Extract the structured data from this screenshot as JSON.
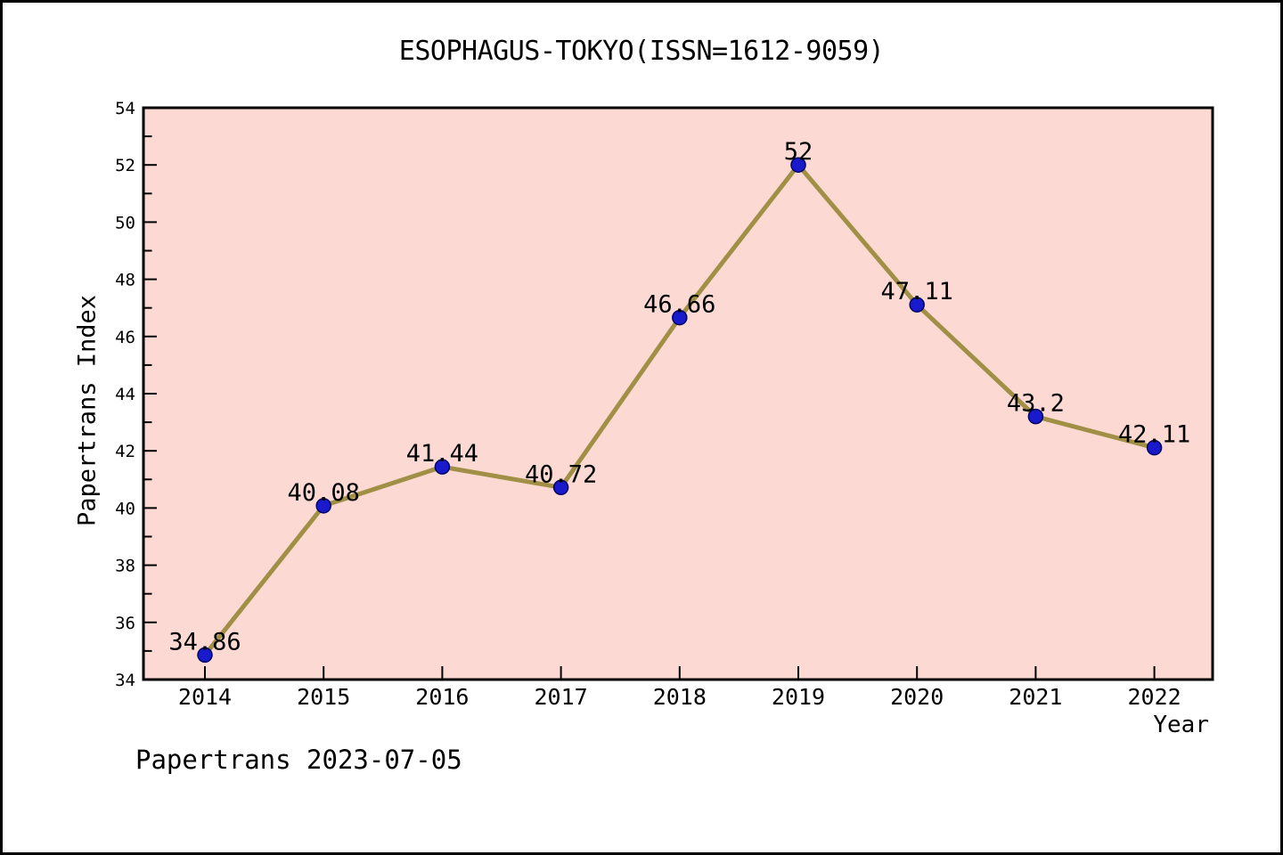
{
  "page": {
    "title": "ESOPHAGUS-TOKYO(ISSN=1612-9059)",
    "footer": "Papertrans 2023-07-05"
  },
  "chart_data": {
    "type": "line",
    "title": "ESOPHAGUS-TOKYO(ISSN=1612-9059)",
    "xlabel": "Year",
    "ylabel": "Papertrans Index",
    "categories": [
      2014,
      2015,
      2016,
      2017,
      2018,
      2019,
      2020,
      2021,
      2022
    ],
    "series": [
      {
        "name": "Papertrans Index",
        "values": [
          34.86,
          40.08,
          41.44,
          40.72,
          46.66,
          52,
          47.11,
          43.2,
          42.11
        ],
        "point_labels": [
          "34.86",
          "40.08",
          "41.44",
          "40.72",
          "46.66",
          "52",
          "47.11",
          "43.2",
          "42.11"
        ]
      }
    ],
    "ylim": [
      34,
      54
    ],
    "y_major_step": 2,
    "y_minor_step": 1,
    "y_tick_labels": [
      "34",
      "36",
      "38",
      "40",
      "42",
      "44",
      "46",
      "48",
      "50",
      "52",
      "54"
    ],
    "grid": false,
    "legend": false,
    "annotation": "Papertrans 2023-07-05",
    "colors": {
      "page_background": "#ffffff",
      "plot_background": "#fcd9d3",
      "line": "#a08f45",
      "marker": "#1a1acd",
      "marker_edge": "#000066",
      "axis": "#000000",
      "text": "#000000"
    }
  }
}
